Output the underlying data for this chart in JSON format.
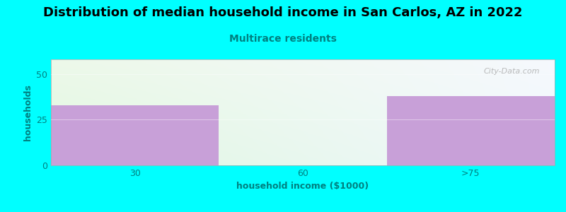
{
  "title": "Distribution of median household income in San Carlos, AZ in 2022",
  "subtitle": "Multirace residents",
  "xlabel": "household income ($1000)",
  "ylabel": "households",
  "background_color": "#00FFFF",
  "bar_categories": [
    "30",
    "60",
    ">75"
  ],
  "bar_values": [
    33,
    0,
    38
  ],
  "bar_colors": [
    "#c8a0d8",
    "#d8ecd8",
    "#c8a0d8"
  ],
  "ylim": [
    0,
    58
  ],
  "yticks": [
    0,
    25,
    50
  ],
  "title_fontsize": 13,
  "subtitle_fontsize": 10,
  "axis_label_fontsize": 9,
  "tick_fontsize": 9,
  "watermark": "City-Data.com",
  "title_color": "#000000",
  "subtitle_color": "#008080",
  "axis_label_color": "#008080",
  "tick_color": "#008080"
}
